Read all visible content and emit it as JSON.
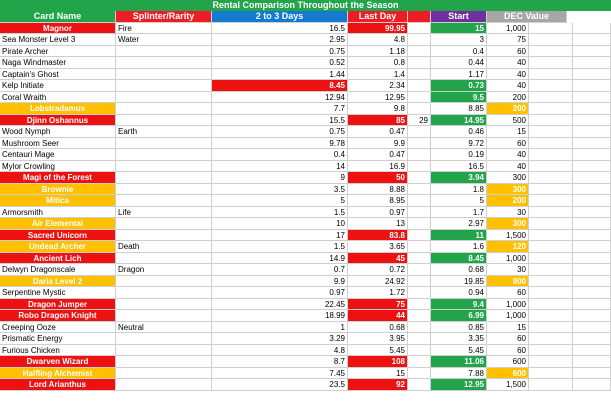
{
  "title": "Rental Comparison Throughout the Season",
  "headers": {
    "card_name": "Card Name",
    "splinter_rarity": "Splinter/Rarity",
    "two_to_three_days": "2 to 3 Days",
    "last_day": "Last Day",
    "start": "Start",
    "dec_value": "DEC Value"
  },
  "rows": [
    {
      "name": "Magnor",
      "splinter": "Fire",
      "d23": "16.5",
      "last": "99.95",
      "extra": "",
      "start": "15",
      "dec": "1,000",
      "name_fill": "red",
      "d23_fill": "",
      "last_fill": "red",
      "start_fill": "green",
      "dec_fill": ""
    },
    {
      "name": "Sea Monster Level 3",
      "splinter": "Water",
      "d23": "2.95",
      "last": "4.8",
      "extra": "",
      "start": "3",
      "dec": "75",
      "name_fill": "",
      "d23_fill": "",
      "last_fill": "",
      "start_fill": "",
      "dec_fill": ""
    },
    {
      "name": "Pirate Archer",
      "splinter": "",
      "d23": "0.75",
      "last": "1.18",
      "extra": "",
      "start": "0.4",
      "dec": "60",
      "name_fill": "",
      "d23_fill": "",
      "last_fill": "",
      "start_fill": "",
      "dec_fill": ""
    },
    {
      "name": "Naga Windmaster",
      "splinter": "",
      "d23": "0.52",
      "last": "0.8",
      "extra": "",
      "start": "0.44",
      "dec": "40",
      "name_fill": "",
      "d23_fill": "",
      "last_fill": "",
      "start_fill": "",
      "dec_fill": ""
    },
    {
      "name": "Captain's Ghost",
      "splinter": "",
      "d23": "1.44",
      "last": "1.4",
      "extra": "",
      "start": "1.17",
      "dec": "40",
      "name_fill": "",
      "d23_fill": "",
      "last_fill": "",
      "start_fill": "",
      "dec_fill": ""
    },
    {
      "name": "Kelp Initiate",
      "splinter": "",
      "d23": "8.45",
      "last": "2.34",
      "extra": "",
      "start": "0.73",
      "dec": "40",
      "name_fill": "",
      "d23_fill": "red",
      "last_fill": "",
      "start_fill": "green",
      "dec_fill": ""
    },
    {
      "name": "Coral Wraith",
      "splinter": "",
      "d23": "12.94",
      "last": "12.95",
      "extra": "",
      "start": "9.5",
      "dec": "200",
      "name_fill": "",
      "d23_fill": "",
      "last_fill": "",
      "start_fill": "green",
      "dec_fill": ""
    },
    {
      "name": "Lobstradamus",
      "splinter": "",
      "d23": "7.7",
      "last": "9.8",
      "extra": "",
      "start": "8.85",
      "dec": "200",
      "name_fill": "orange",
      "d23_fill": "",
      "last_fill": "",
      "start_fill": "",
      "dec_fill": "orange"
    },
    {
      "name": "Djinn Oshannus",
      "splinter": "",
      "d23": "15.5",
      "last": "85",
      "extra": "29",
      "start": "14.95",
      "dec": "500",
      "name_fill": "red",
      "d23_fill": "",
      "last_fill": "red",
      "start_fill": "green",
      "dec_fill": ""
    },
    {
      "name": "Wood Nymph",
      "splinter": "Earth",
      "d23": "0.75",
      "last": "0.47",
      "extra": "",
      "start": "0.46",
      "dec": "15",
      "name_fill": "",
      "d23_fill": "",
      "last_fill": "",
      "start_fill": "",
      "dec_fill": ""
    },
    {
      "name": "Mushroom Seer",
      "splinter": "",
      "d23": "9.78",
      "last": "9.9",
      "extra": "",
      "start": "9.72",
      "dec": "60",
      "name_fill": "",
      "d23_fill": "",
      "last_fill": "",
      "start_fill": "",
      "dec_fill": ""
    },
    {
      "name": "Centauri Mage",
      "splinter": "",
      "d23": "0.4",
      "last": "0.47",
      "extra": "",
      "start": "0.19",
      "dec": "40",
      "name_fill": "",
      "d23_fill": "",
      "last_fill": "",
      "start_fill": "",
      "dec_fill": ""
    },
    {
      "name": "Mylor Crowling",
      "splinter": "",
      "d23": "14",
      "last": "16.9",
      "extra": "",
      "start": "16.5",
      "dec": "40",
      "name_fill": "",
      "d23_fill": "",
      "last_fill": "",
      "start_fill": "",
      "dec_fill": ""
    },
    {
      "name": "Magi of the Forest",
      "splinter": "",
      "d23": "9",
      "last": "50",
      "extra": "",
      "start": "3.94",
      "dec": "300",
      "name_fill": "red",
      "d23_fill": "",
      "last_fill": "red",
      "start_fill": "green",
      "dec_fill": ""
    },
    {
      "name": "Brownie",
      "splinter": "",
      "d23": "3.5",
      "last": "8.88",
      "extra": "",
      "start": "1.8",
      "dec": "300",
      "name_fill": "orange",
      "d23_fill": "",
      "last_fill": "",
      "start_fill": "",
      "dec_fill": "orange"
    },
    {
      "name": "Mitica",
      "splinter": "",
      "d23": "5",
      "last": "8.95",
      "extra": "",
      "start": "5",
      "dec": "200",
      "name_fill": "orange",
      "d23_fill": "",
      "last_fill": "",
      "start_fill": "",
      "dec_fill": "orange"
    },
    {
      "name": "Armorsmith",
      "splinter": "Life",
      "d23": "1.5",
      "last": "0.97",
      "extra": "",
      "start": "1.7",
      "dec": "30",
      "name_fill": "",
      "d23_fill": "",
      "last_fill": "",
      "start_fill": "",
      "dec_fill": ""
    },
    {
      "name": "Air Elemental",
      "splinter": "",
      "d23": "10",
      "last": "13",
      "extra": "",
      "start": "2.97",
      "dec": "300",
      "name_fill": "orange",
      "d23_fill": "",
      "last_fill": "",
      "start_fill": "",
      "dec_fill": "orange"
    },
    {
      "name": "Sacred Unicorn",
      "splinter": "",
      "d23": "17",
      "last": "83.8",
      "extra": "",
      "start": "11",
      "dec": "1,500",
      "name_fill": "red",
      "d23_fill": "",
      "last_fill": "red",
      "start_fill": "green",
      "dec_fill": ""
    },
    {
      "name": "Undead Archer",
      "splinter": "Death",
      "d23": "1.5",
      "last": "3.65",
      "extra": "",
      "start": "1.6",
      "dec": "120",
      "name_fill": "orange",
      "d23_fill": "",
      "last_fill": "",
      "start_fill": "",
      "dec_fill": "orange"
    },
    {
      "name": "Ancient Lich",
      "splinter": "",
      "d23": "14.9",
      "last": "45",
      "extra": "",
      "start": "8.45",
      "dec": "1,000",
      "name_fill": "red",
      "d23_fill": "",
      "last_fill": "red",
      "start_fill": "green",
      "dec_fill": ""
    },
    {
      "name": "Delwyn Dragonscale",
      "splinter": "Dragon",
      "d23": "0.7",
      "last": "0.72",
      "extra": "",
      "start": "0.68",
      "dec": "30",
      "name_fill": "",
      "d23_fill": "",
      "last_fill": "",
      "start_fill": "",
      "dec_fill": ""
    },
    {
      "name": "Daria Level 2",
      "splinter": "",
      "d23": "9.9",
      "last": "24.92",
      "extra": "",
      "start": "19.85",
      "dec": "900",
      "name_fill": "orange",
      "d23_fill": "",
      "last_fill": "",
      "start_fill": "",
      "dec_fill": "orange"
    },
    {
      "name": "Serpentine Mystic",
      "splinter": "",
      "d23": "0.97",
      "last": "1.72",
      "extra": "",
      "start": "0.94",
      "dec": "60",
      "name_fill": "",
      "d23_fill": "",
      "last_fill": "",
      "start_fill": "",
      "dec_fill": ""
    },
    {
      "name": "Dragon Jumper",
      "splinter": "",
      "d23": "22.45",
      "last": "75",
      "extra": "",
      "start": "9.4",
      "dec": "1,000",
      "name_fill": "red",
      "d23_fill": "",
      "last_fill": "red",
      "start_fill": "green",
      "dec_fill": ""
    },
    {
      "name": "Robo Dragon Knight",
      "splinter": "",
      "d23": "18.99",
      "last": "44",
      "extra": "",
      "start": "6.99",
      "dec": "1,000",
      "name_fill": "red",
      "d23_fill": "",
      "last_fill": "red",
      "start_fill": "green",
      "dec_fill": ""
    },
    {
      "name": "Creeping Ooze",
      "splinter": "Neutral",
      "d23": "1",
      "last": "0.68",
      "extra": "",
      "start": "0.85",
      "dec": "15",
      "name_fill": "",
      "d23_fill": "",
      "last_fill": "",
      "start_fill": "",
      "dec_fill": ""
    },
    {
      "name": "Prismatic Energy",
      "splinter": "",
      "d23": "3.29",
      "last": "3.95",
      "extra": "",
      "start": "3.35",
      "dec": "60",
      "name_fill": "",
      "d23_fill": "",
      "last_fill": "",
      "start_fill": "",
      "dec_fill": ""
    },
    {
      "name": "Furious Chicken",
      "splinter": "",
      "d23": "4.8",
      "last": "5.45",
      "extra": "",
      "start": "5.45",
      "dec": "60",
      "name_fill": "",
      "d23_fill": "",
      "last_fill": "",
      "start_fill": "",
      "dec_fill": ""
    },
    {
      "name": "Dwarven Wizard",
      "splinter": "",
      "d23": "8.7",
      "last": "108",
      "extra": "",
      "start": "11.06",
      "dec": "600",
      "name_fill": "red",
      "d23_fill": "",
      "last_fill": "red",
      "start_fill": "green",
      "dec_fill": ""
    },
    {
      "name": "Halfling Alchemist",
      "splinter": "",
      "d23": "7.45",
      "last": "15",
      "extra": "",
      "start": "7.88",
      "dec": "600",
      "name_fill": "orange",
      "d23_fill": "",
      "last_fill": "",
      "start_fill": "",
      "dec_fill": "orange"
    },
    {
      "name": "Lord Arianthus",
      "splinter": "",
      "d23": "23.5",
      "last": "92",
      "extra": "",
      "start": "12.95",
      "dec": "1,500",
      "name_fill": "red",
      "d23_fill": "",
      "last_fill": "red",
      "start_fill": "green",
      "dec_fill": ""
    }
  ]
}
